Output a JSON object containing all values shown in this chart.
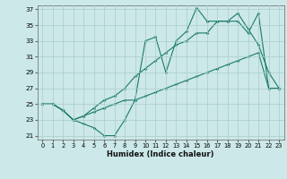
{
  "bg_color": "#cce8e8",
  "grid_color": "#aacccc",
  "line_color": "#1a7a6a",
  "xlabel": "Humidex (Indice chaleur)",
  "xlim": [
    -0.5,
    23.5
  ],
  "ylim": [
    20.5,
    37.5
  ],
  "xticks": [
    0,
    1,
    2,
    3,
    4,
    5,
    6,
    7,
    8,
    9,
    10,
    11,
    12,
    13,
    14,
    15,
    16,
    17,
    18,
    19,
    20,
    21,
    22,
    23
  ],
  "yticks": [
    21,
    23,
    25,
    27,
    29,
    31,
    33,
    35,
    37
  ],
  "line1_x": [
    0,
    1,
    2,
    3,
    4,
    5,
    6,
    7,
    8,
    9,
    10,
    11,
    12,
    13,
    14,
    15,
    16,
    17,
    18,
    19,
    20,
    21,
    22,
    23
  ],
  "line1_y": [
    25.0,
    25.0,
    24.2,
    23.0,
    22.5,
    22.0,
    21.0,
    21.0,
    23.0,
    25.5,
    33.0,
    33.5,
    29.0,
    33.0,
    34.2,
    37.2,
    35.5,
    35.5,
    35.5,
    36.5,
    34.5,
    32.5,
    29.0,
    27.0
  ],
  "line2_x": [
    0,
    1,
    2,
    3,
    4,
    5,
    6,
    7,
    8,
    9,
    10,
    11,
    12,
    13,
    14,
    15,
    16,
    17,
    18,
    19,
    20,
    21,
    22,
    23
  ],
  "line2_y": [
    25.0,
    25.0,
    24.2,
    23.0,
    23.5,
    24.5,
    25.5,
    26.0,
    27.0,
    28.5,
    29.5,
    30.5,
    31.5,
    32.5,
    33.0,
    34.0,
    34.0,
    35.5,
    35.5,
    35.5,
    34.0,
    36.5,
    27.0,
    27.0
  ],
  "line3_x": [
    0,
    1,
    2,
    3,
    4,
    5,
    6,
    7,
    8,
    9,
    10,
    11,
    12,
    13,
    14,
    15,
    16,
    17,
    18,
    19,
    20,
    21,
    22,
    23
  ],
  "line3_y": [
    25.0,
    25.0,
    24.2,
    23.0,
    23.5,
    24.0,
    24.5,
    25.0,
    25.5,
    25.5,
    26.0,
    26.5,
    27.0,
    27.5,
    28.0,
    28.5,
    29.0,
    29.5,
    30.0,
    30.5,
    31.0,
    31.5,
    27.0,
    27.0
  ]
}
